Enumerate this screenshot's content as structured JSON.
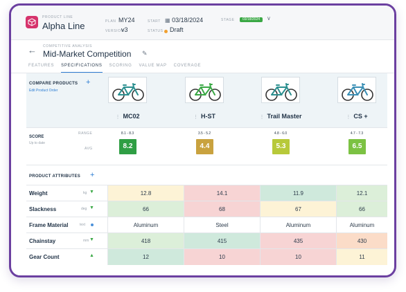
{
  "header": {
    "product_line_label": "PRODUCT LINE",
    "product_line": "Alpha Line",
    "plan_label": "PLAN",
    "plan": "MY24",
    "version_label": "VERSION",
    "version": "v3",
    "start_label": "START",
    "start_date": "03/18/2024",
    "status_label": "STATUS",
    "status": "Draft",
    "stage_label": "STAGE",
    "stage_badge": "03/18/2024"
  },
  "page": {
    "section_label": "COMPETITIVE ANALYSIS",
    "title": "Mid-Market Competition"
  },
  "tabs": [
    {
      "label": "FEATURES",
      "active": false
    },
    {
      "label": "SPECIFICATIONS",
      "active": true
    },
    {
      "label": "SCORING",
      "active": false
    },
    {
      "label": "VALUE MAP",
      "active": false
    },
    {
      "label": "COVERAGE",
      "active": false
    }
  ],
  "compare": {
    "label": "COMPARE PRODUCTS",
    "edit_order": "Edit Product Order"
  },
  "products": [
    {
      "name": "MC02",
      "range": "8.1 - 8.3",
      "avg": "8.2",
      "score_color": "#2f9e44",
      "frame_color": "#2b8f8f"
    },
    {
      "name": "H-ST",
      "range": "3.5 - 5.2",
      "avg": "4.4",
      "score_color": "#c9a23f",
      "frame_color": "#3aa845"
    },
    {
      "name": "Trail Master",
      "range": "4.8 - 6.0",
      "avg": "5.3",
      "score_color": "#b7c93a",
      "frame_color": "#2b8f8f"
    },
    {
      "name": "CS +",
      "range": "4.7 - 7.3",
      "avg": "6.5",
      "score_color": "#7cc243",
      "frame_color": "#3a8fb5"
    }
  ],
  "score": {
    "label": "SCORE",
    "sub": "Up to date",
    "range_label": "RANGE",
    "avg_label": "AVG"
  },
  "attributes_label": "PRODUCT ATTRIBUTES",
  "attributes": [
    {
      "name": "Weight",
      "unit": "kg",
      "indicator": "down",
      "values": [
        "12.8",
        "14.1",
        "11.9",
        "12.1"
      ],
      "colors": [
        "#fdf3d6",
        "#f7d4d4",
        "#cfe9dc",
        "#dcefd9"
      ]
    },
    {
      "name": "Slackness",
      "unit": "deg",
      "indicator": "down",
      "values": [
        "66",
        "68",
        "67",
        "66"
      ],
      "colors": [
        "#dcefd9",
        "#f7d4d4",
        "#fdf3d6",
        "#dcefd9"
      ]
    },
    {
      "name": "Frame Material",
      "unit": "text",
      "indicator": "dot",
      "values": [
        "Aluminum",
        "Steel",
        "Aluminum",
        "Aluminum"
      ],
      "colors": [
        "#ffffff",
        "#ffffff",
        "#ffffff",
        "#ffffff"
      ]
    },
    {
      "name": "Chainstay",
      "unit": "mm",
      "indicator": "down",
      "values": [
        "418",
        "415",
        "435",
        "430"
      ],
      "colors": [
        "#dcefd9",
        "#cfe9dc",
        "#f7d4d4",
        "#fbdcc8"
      ]
    },
    {
      "name": "Gear Count",
      "unit": "",
      "indicator": "up",
      "values": [
        "12",
        "10",
        "10",
        "11"
      ],
      "colors": [
        "#cfe9dc",
        "#f7d4d4",
        "#f7d4d4",
        "#fdf3d6"
      ]
    }
  ]
}
